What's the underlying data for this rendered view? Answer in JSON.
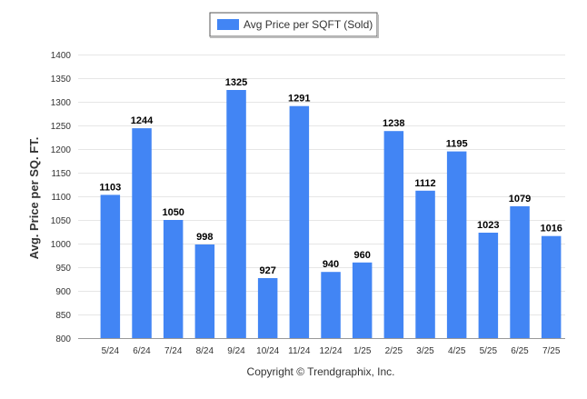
{
  "chart_data": {
    "type": "bar",
    "categories": [
      "5/24",
      "6/24",
      "7/24",
      "8/24",
      "9/24",
      "10/24",
      "11/24",
      "12/24",
      "1/25",
      "2/25",
      "3/25",
      "4/25",
      "5/25",
      "6/25",
      "7/25"
    ],
    "series": [
      {
        "name": "Avg Price per SQFT (Sold)",
        "values": [
          1103,
          1244,
          1050,
          998,
          1325,
          927,
          1291,
          940,
          960,
          1238,
          1112,
          1195,
          1023,
          1079,
          1016
        ],
        "color": "#4285f4"
      }
    ],
    "ylabel": "Avg. Price per SQ. FT.",
    "xlabel": "",
    "ylim": [
      800,
      1400
    ],
    "yticks": [
      800,
      850,
      900,
      950,
      1000,
      1050,
      1100,
      1150,
      1200,
      1250,
      1300,
      1350,
      1400
    ],
    "grid": true,
    "legend": "top-center",
    "data_labels": true
  },
  "footer": {
    "copyright": "Copyright © Trendgraphix, Inc."
  },
  "colors": {
    "bar": "#4285f4",
    "grid": "#e6e6e6",
    "axis": "#999999"
  }
}
